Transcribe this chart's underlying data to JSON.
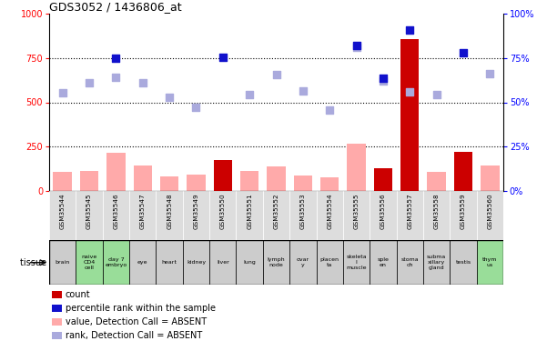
{
  "title": "GDS3052 / 1436806_at",
  "samples": [
    "GSM35544",
    "GSM35545",
    "GSM35546",
    "GSM35547",
    "GSM35548",
    "GSM35549",
    "GSM35550",
    "GSM35551",
    "GSM35552",
    "GSM35553",
    "GSM35554",
    "GSM35555",
    "GSM35556",
    "GSM35557",
    "GSM35558",
    "GSM35559",
    "GSM35560"
  ],
  "tissues": [
    "brain",
    "naive\nCD4\ncell",
    "day 7\nembryо",
    "eye",
    "heart",
    "kidney",
    "liver",
    "lung",
    "lymph\nnode",
    "ovar\ny",
    "placen\nta",
    "skeleta\nl\nmuscle",
    "sple\nen",
    "stoma\nch",
    "subma\nxillary\ngland",
    "testis",
    "thym\nus"
  ],
  "tissue_green": [
    false,
    true,
    true,
    false,
    false,
    false,
    false,
    false,
    false,
    false,
    false,
    false,
    false,
    false,
    false,
    false,
    true
  ],
  "count_values": [
    0,
    0,
    0,
    0,
    0,
    0,
    175,
    0,
    0,
    0,
    0,
    0,
    130,
    855,
    0,
    220,
    0
  ],
  "value_absent": [
    110,
    115,
    215,
    145,
    80,
    90,
    0,
    115,
    140,
    85,
    75,
    265,
    0,
    0,
    110,
    0,
    145
  ],
  "rank_absent": [
    555,
    610,
    640,
    610,
    530,
    470,
    0,
    545,
    655,
    565,
    455,
    810,
    620,
    560,
    545,
    0,
    660
  ],
  "rank_present": [
    0,
    0,
    750,
    0,
    0,
    0,
    755,
    0,
    0,
    0,
    0,
    820,
    635,
    910,
    0,
    780,
    0
  ],
  "ylim_left": [
    0,
    1000
  ],
  "ylim_right": [
    0,
    100
  ],
  "yticks_left": [
    0,
    250,
    500,
    750,
    1000
  ],
  "yticks_right": [
    0,
    25,
    50,
    75,
    100
  ],
  "color_count": "#cc0000",
  "color_rank_present": "#1111cc",
  "color_value_absent": "#ffaaaa",
  "color_rank_absent": "#aaaadd",
  "color_tissue_green": "#99dd99",
  "color_tissue_gray": "#cccccc",
  "color_sample_bg": "#dddddd",
  "color_sample_bg_alt": "#eeeeee"
}
